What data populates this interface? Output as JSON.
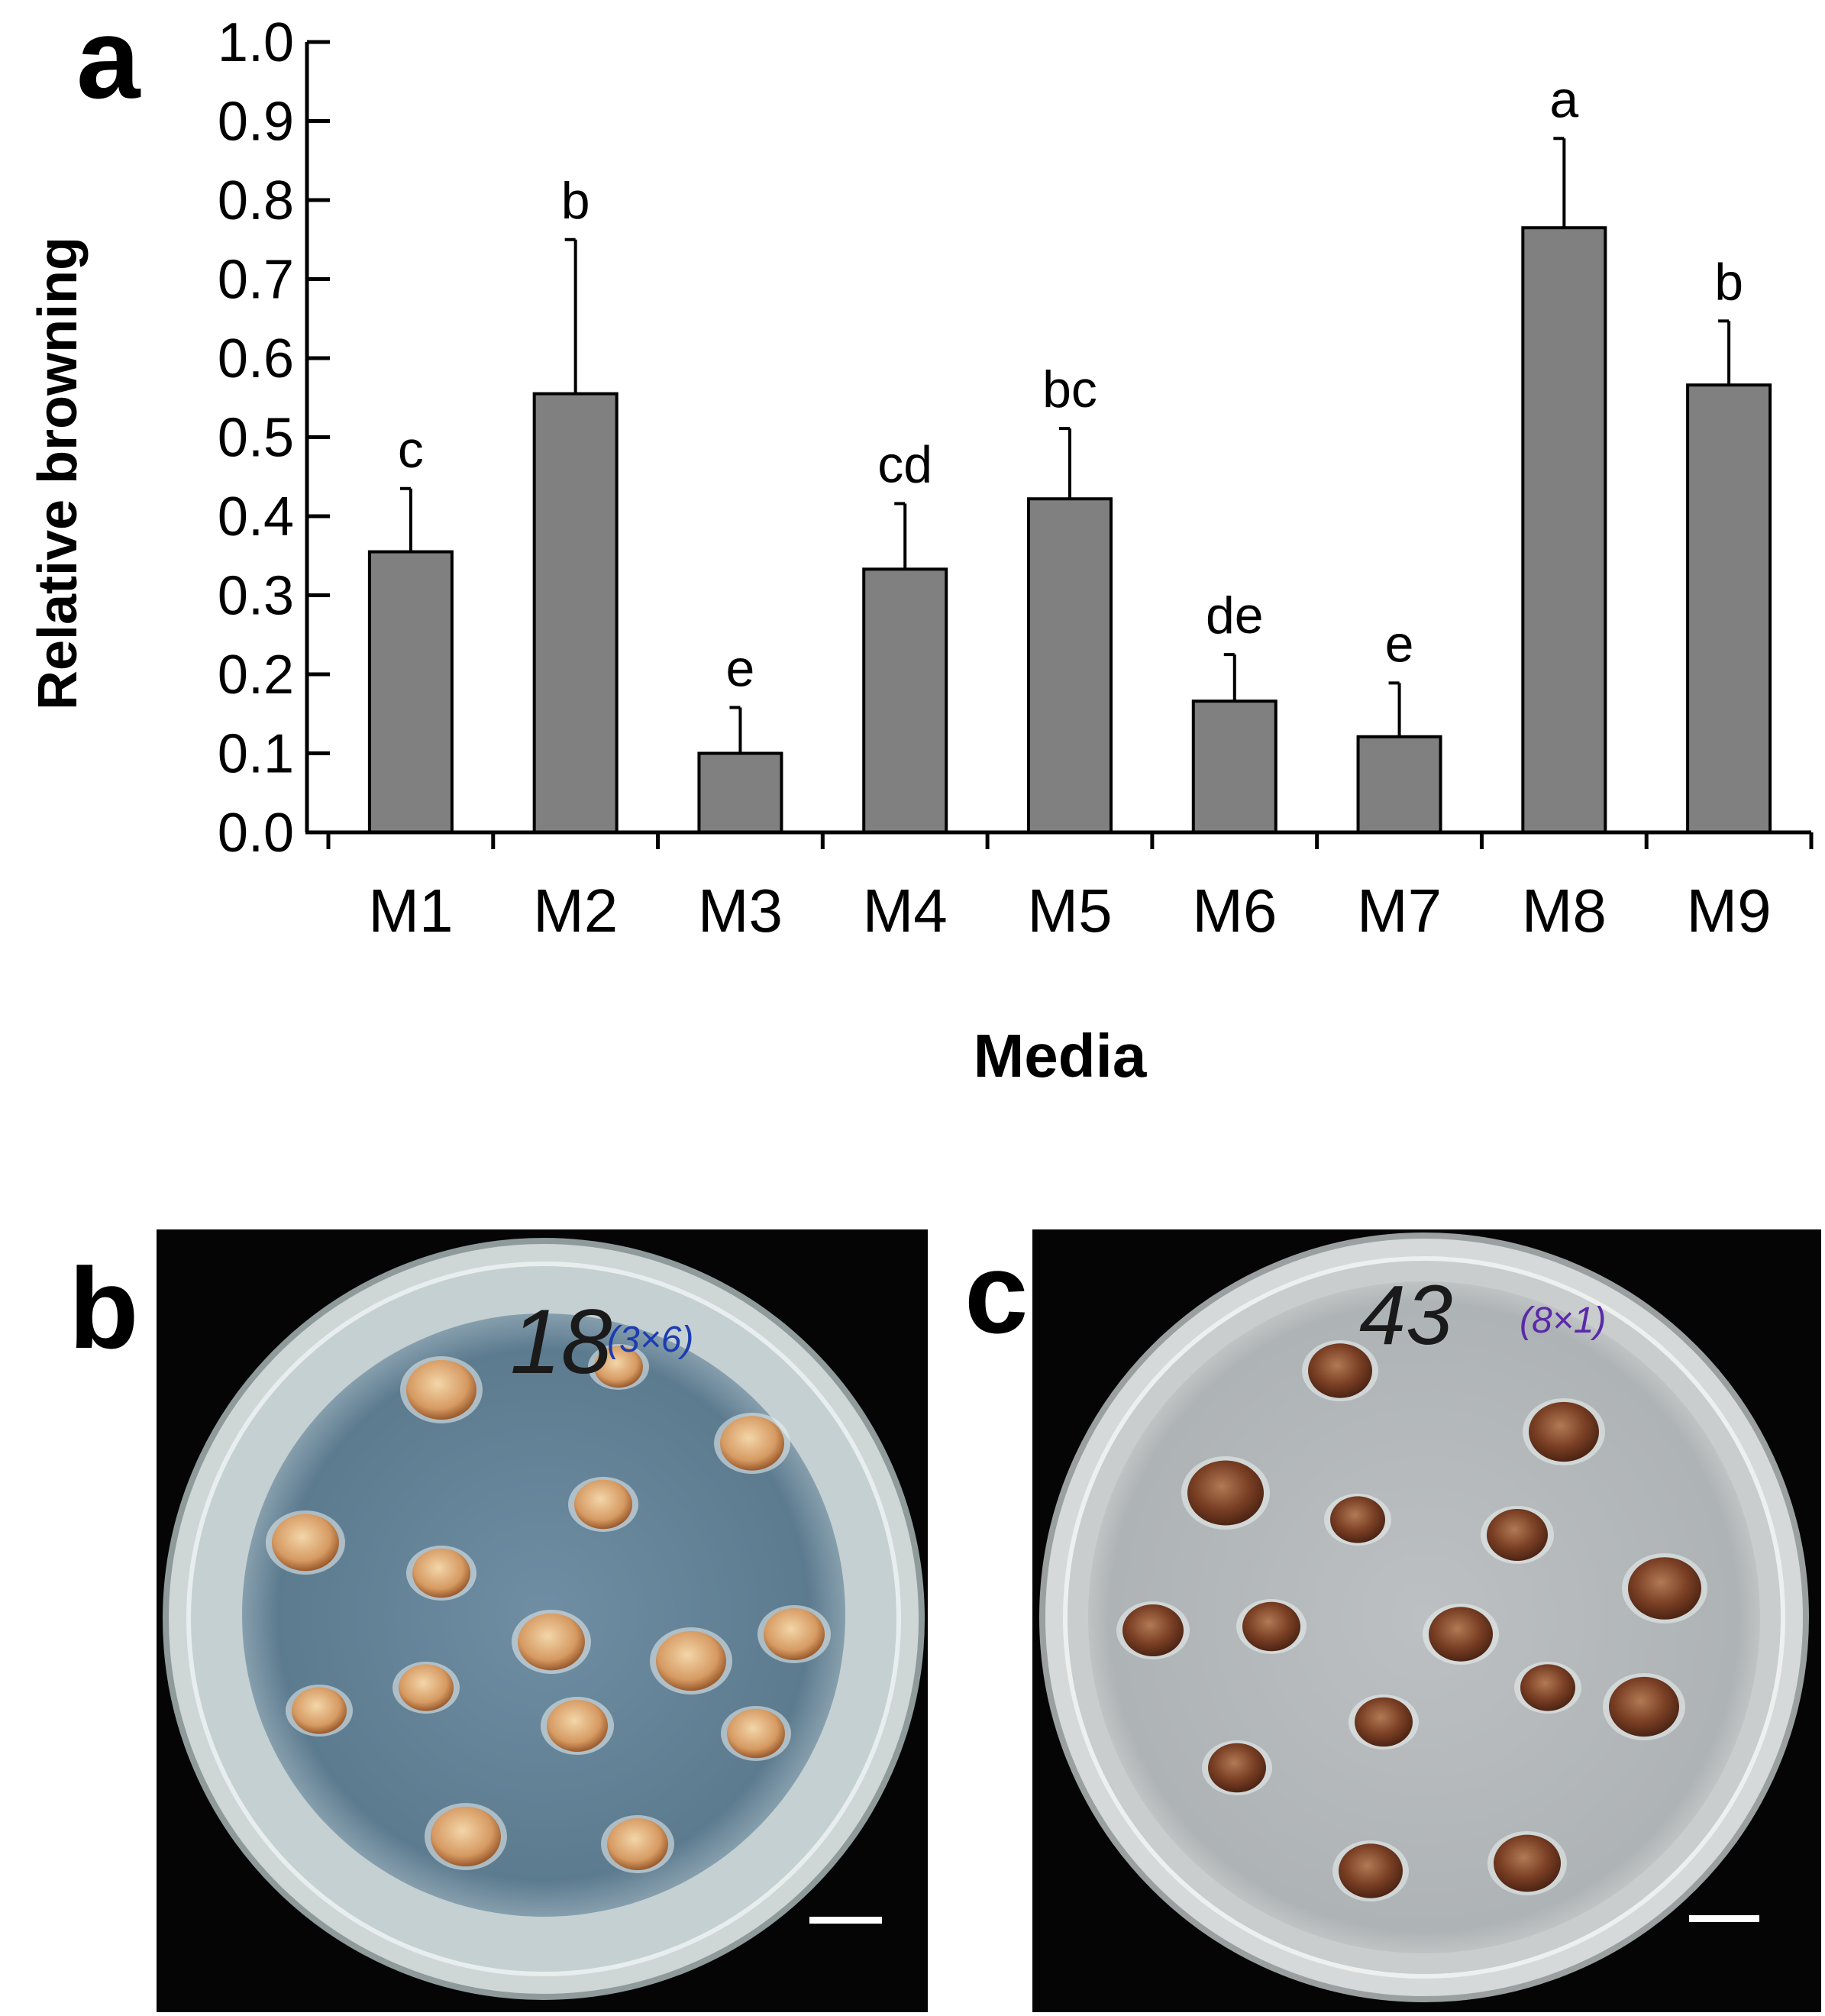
{
  "panel_labels": {
    "a": "a",
    "b": "b",
    "c": "c"
  },
  "chart_data": {
    "type": "bar",
    "title": "",
    "xlabel": "Media",
    "ylabel": "Relative browning",
    "ylim": [
      0,
      1.0
    ],
    "yticks": [
      "0.0",
      "0.1",
      "0.2",
      "0.3",
      "0.4",
      "0.5",
      "0.6",
      "0.7",
      "0.8",
      "0.9",
      "1.0"
    ],
    "categories": [
      "M1",
      "M2",
      "M3",
      "M4",
      "M5",
      "M6",
      "M7",
      "M8",
      "M9"
    ],
    "values": [
      0.355,
      0.555,
      0.1,
      0.333,
      0.422,
      0.166,
      0.121,
      0.765,
      0.566
    ],
    "error": [
      0.08,
      0.195,
      0.058,
      0.083,
      0.089,
      0.059,
      0.068,
      0.113,
      0.081
    ],
    "significance_letters": [
      "c",
      "b",
      "e",
      "cd",
      "bc",
      "de",
      "e",
      "a",
      "b"
    ],
    "bar_color": "#808080"
  },
  "photos": {
    "b": {
      "plate_label": "18",
      "plate_note": "(3×6)",
      "medium_color": "#5f7e93"
    },
    "c": {
      "plate_label": "43",
      "plate_note": "(8×1)",
      "medium_color": "#b6bbbd"
    }
  }
}
